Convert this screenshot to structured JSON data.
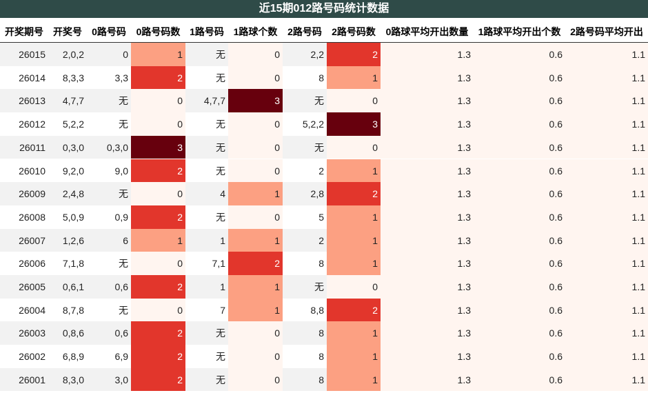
{
  "title": "近15期012路号码统计数据",
  "table": {
    "header": [
      "开奖期号",
      "开奖号",
      "0路号码",
      "0路号码数",
      "1路号码",
      "1路球个数",
      "2路号码",
      "2路号码数",
      "0路球平均开出数量",
      "1路球平均开出个数",
      "2路号码平均开出"
    ],
    "rows": [
      [
        26015,
        "2,0,2",
        "0",
        1,
        "无",
        0,
        "2,2",
        2,
        1.3,
        0.6,
        1.1
      ],
      [
        26014,
        "8,3,3",
        "3,3",
        2,
        "无",
        0,
        "8",
        1,
        1.3,
        0.6,
        1.1
      ],
      [
        26013,
        "4,7,7",
        "无",
        0,
        "4,7,7",
        3,
        "无",
        0,
        1.3,
        0.6,
        1.1
      ],
      [
        26012,
        "5,2,2",
        "无",
        0,
        "无",
        0,
        "5,2,2",
        3,
        1.3,
        0.6,
        1.1
      ],
      [
        26011,
        "0,3,0",
        "0,3,0",
        3,
        "无",
        0,
        "无",
        0,
        1.3,
        0.6,
        1.1
      ],
      [
        26010,
        "9,2,0",
        "9,0",
        2,
        "无",
        0,
        "2",
        1,
        1.3,
        0.6,
        1.1
      ],
      [
        26009,
        "2,4,8",
        "无",
        0,
        "4",
        1,
        "2,8",
        2,
        1.3,
        0.6,
        1.1
      ],
      [
        26008,
        "5,0,9",
        "0,9",
        2,
        "无",
        0,
        "5",
        1,
        1.3,
        0.6,
        1.1
      ],
      [
        26007,
        "1,2,6",
        "6",
        1,
        "1",
        1,
        "2",
        1,
        1.3,
        0.6,
        1.1
      ],
      [
        26006,
        "7,1,8",
        "无",
        0,
        "7,1",
        2,
        "8",
        1,
        1.3,
        0.6,
        1.1
      ],
      [
        26005,
        "0,6,1",
        "0,6",
        2,
        "1",
        1,
        "无",
        0,
        1.3,
        0.6,
        1.1
      ],
      [
        26004,
        "8,7,8",
        "无",
        0,
        "7",
        1,
        "8,8",
        2,
        1.3,
        0.6,
        1.1
      ],
      [
        26003,
        "0,8,6",
        "0,6",
        2,
        "无",
        0,
        "8",
        1,
        1.3,
        0.6,
        1.1
      ],
      [
        26002,
        "6,8,9",
        "6,9",
        2,
        "无",
        0,
        "8",
        1,
        1.3,
        0.6,
        1.1
      ],
      [
        26001,
        "8,3,0",
        "3,0",
        2,
        "无",
        0,
        "8",
        1,
        1.3,
        0.6,
        1.1
      ]
    ]
  },
  "heat_colors": [
    "#fff5f0",
    "#fca082",
    "#e2362c",
    "#67000d"
  ]
}
